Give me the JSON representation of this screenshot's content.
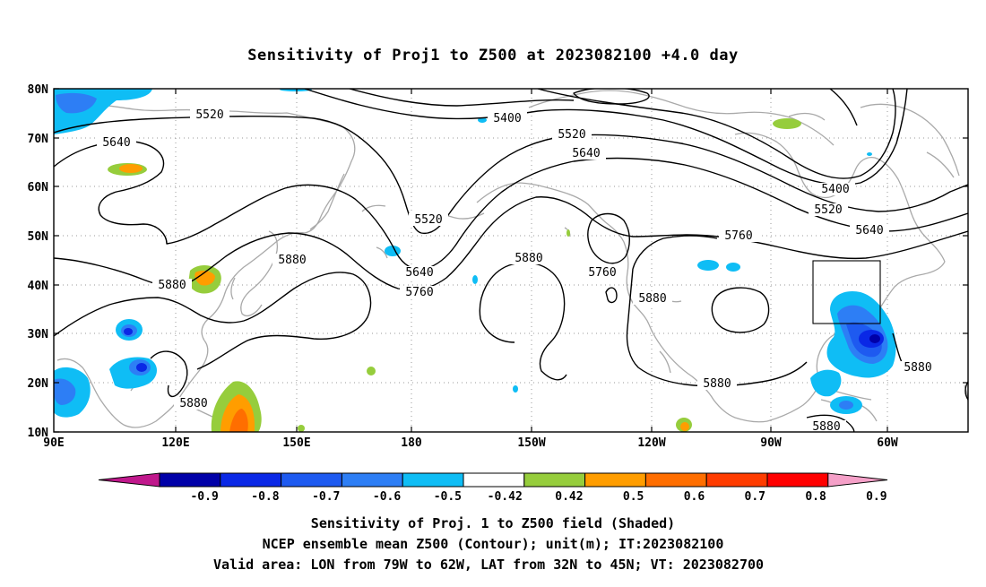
{
  "title": "Sensitivity of Proj1 to Z500 at 2023082100 +4.0 day",
  "lon_labels": [
    "90E",
    "120E",
    "150E",
    "180",
    "150W",
    "120W",
    "90W",
    "60W"
  ],
  "lat_labels": [
    "80N",
    "70N",
    "60N",
    "50N",
    "40N",
    "30N",
    "20N",
    "10N"
  ],
  "contour_labels": {
    "c1": "5520",
    "c2": "5400",
    "c3": "5640",
    "c4": "5520",
    "c5": "5640",
    "c6": "5400",
    "c7": "5520",
    "c8": "5520",
    "c9": "5640",
    "c10": "5760",
    "c11": "5880",
    "c12": "5880",
    "c13": "5760",
    "c14": "5640",
    "c15": "5760",
    "c16": "5880",
    "c17": "5880",
    "c18": "5880",
    "c19": "5880",
    "c20": "5880"
  },
  "colorbar": {
    "labels": [
      "-0.9",
      "-0.8",
      "-0.7",
      "-0.6",
      "-0.5",
      "-0.42",
      "0.42",
      "0.5",
      "0.6",
      "0.7",
      "0.8",
      "0.9"
    ],
    "colors": [
      "#0000a8",
      "#0a28e6",
      "#1e5af0",
      "#2d7ef5",
      "#0fbdf5",
      "#ffffff",
      "#96cd3c",
      "#ff9d00",
      "#ff6e00",
      "#ff3c00",
      "#ff0000"
    ],
    "low_end_color": "#c0188c",
    "high_end_color": "#f5a0c8"
  },
  "footer": {
    "line1": "Sensitivity of Proj. 1 to Z500 field (Shaded)",
    "line2": "NCEP ensemble mean Z500 (Contour); unit(m); IT:2023082100",
    "line3": "Valid area: LON from 79W to 62W, LAT from 32N to 45N; VT: 2023082700"
  }
}
